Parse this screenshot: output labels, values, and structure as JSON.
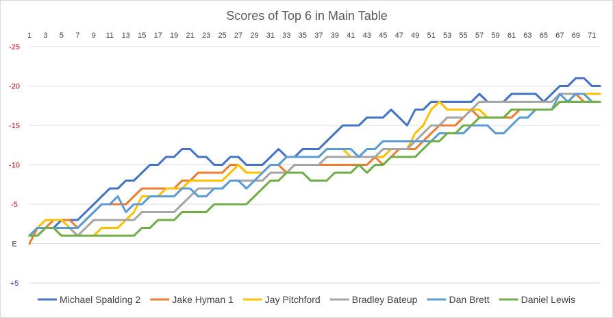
{
  "chart_data": {
    "type": "line",
    "title": "Scores of Top 6 in Main Table",
    "xlabel": "",
    "ylabel": "",
    "x": [
      1,
      2,
      3,
      4,
      5,
      6,
      7,
      8,
      9,
      10,
      11,
      12,
      13,
      14,
      15,
      16,
      17,
      18,
      19,
      20,
      21,
      22,
      23,
      24,
      25,
      26,
      27,
      28,
      29,
      30,
      31,
      32,
      33,
      34,
      35,
      36,
      37,
      38,
      39,
      40,
      41,
      42,
      43,
      44,
      45,
      46,
      47,
      48,
      49,
      50,
      51,
      52,
      53,
      54,
      55,
      56,
      57,
      58,
      59,
      60,
      61,
      62,
      63,
      64,
      65,
      66,
      67,
      68,
      69,
      70,
      71,
      72
    ],
    "x_tick_labels": [
      "1",
      "3",
      "5",
      "7",
      "9",
      "11",
      "13",
      "15",
      "17",
      "19",
      "21",
      "23",
      "25",
      "27",
      "29",
      "31",
      "33",
      "35",
      "37",
      "39",
      "41",
      "43",
      "45",
      "47",
      "49",
      "51",
      "53",
      "55",
      "57",
      "59",
      "61",
      "63",
      "65",
      "67",
      "69",
      "71"
    ],
    "ylim": [
      5,
      -25
    ],
    "y_inverted": true,
    "y_ticks": [
      {
        "value": -25,
        "label": "-25",
        "color": "#c00000"
      },
      {
        "value": -20,
        "label": "-20",
        "color": "#c00000"
      },
      {
        "value": -15,
        "label": "-15",
        "color": "#c00000"
      },
      {
        "value": -10,
        "label": "-10",
        "color": "#c00000"
      },
      {
        "value": -5,
        "label": "-5",
        "color": "#c00000"
      },
      {
        "value": 0,
        "label": "E",
        "color": "#404040"
      },
      {
        "value": 5,
        "label": "+5",
        "color": "#1f3fbf"
      }
    ],
    "x_axis_position": "top",
    "grid": true,
    "legend_position": "bottom",
    "series": [
      {
        "name": "Michael Spalding 2",
        "color": "#4472c4",
        "values": [
          -1,
          -2,
          -2,
          -2,
          -3,
          -3,
          -3,
          -4,
          -5,
          -6,
          -7,
          -7,
          -8,
          -8,
          -9,
          -10,
          -10,
          -11,
          -11,
          -12,
          -12,
          -11,
          -11,
          -10,
          -10,
          -11,
          -11,
          -10,
          -10,
          -10,
          -11,
          -12,
          -11,
          -11,
          -12,
          -12,
          -12,
          -13,
          -14,
          -15,
          -15,
          -15,
          -16,
          -16,
          -16,
          -17,
          -16,
          -15,
          -17,
          -17,
          -18,
          -18,
          -18,
          -18,
          -18,
          -18,
          -19,
          -18,
          -18,
          -18,
          -19,
          -19,
          -19,
          -19,
          -18,
          -19,
          -20,
          -20,
          -21,
          -21,
          -20,
          -20
        ]
      },
      {
        "name": "Jake Hyman 1",
        "color": "#ed7d31",
        "values": [
          0,
          -2,
          -2,
          -3,
          -3,
          -3,
          -2,
          -3,
          -4,
          -5,
          -5,
          -5,
          -5,
          -6,
          -7,
          -7,
          -7,
          -7,
          -7,
          -8,
          -8,
          -9,
          -9,
          -9,
          -9,
          -10,
          -10,
          -9,
          -9,
          -9,
          -10,
          -10,
          -9,
          -10,
          -10,
          -10,
          -10,
          -10,
          -10,
          -10,
          -10,
          -10,
          -10,
          -11,
          -10,
          -11,
          -12,
          -12,
          -12,
          -13,
          -14,
          -15,
          -15,
          -15,
          -16,
          -17,
          -16,
          -16,
          -16,
          -16,
          -16,
          -17,
          -17,
          -17,
          -17,
          -17,
          -18,
          -18,
          -19,
          -18,
          -18,
          -18
        ]
      },
      {
        "name": "Jay Pitchford",
        "color": "#ffc000",
        "values": [
          -1,
          -2,
          -3,
          -3,
          -3,
          -2,
          -1,
          -1,
          -1,
          -2,
          -2,
          -2,
          -3,
          -4,
          -6,
          -6,
          -6,
          -7,
          -7,
          -7,
          -8,
          -8,
          -8,
          -8,
          -8,
          -9,
          -10,
          -9,
          -9,
          -9,
          -10,
          -10,
          -11,
          -11,
          -11,
          -11,
          -11,
          -12,
          -12,
          -12,
          -11,
          -11,
          -11,
          -11,
          -11,
          -12,
          -12,
          -12,
          -14,
          -15,
          -17,
          -18,
          -17,
          -17,
          -17,
          -17,
          -17,
          -16,
          -16,
          -16,
          -17,
          -17,
          -17,
          -17,
          -17,
          -17,
          -18,
          -18,
          -19,
          -19,
          -19,
          -19
        ]
      },
      {
        "name": "Bradley Bateup",
        "color": "#a5a5a5",
        "values": [
          -1,
          -1,
          -2,
          -2,
          -2,
          -2,
          -1,
          -2,
          -3,
          -3,
          -3,
          -3,
          -3,
          -3,
          -4,
          -4,
          -4,
          -4,
          -4,
          -5,
          -6,
          -7,
          -7,
          -7,
          -7,
          -8,
          -8,
          -8,
          -8,
          -8,
          -9,
          -9,
          -9,
          -10,
          -10,
          -10,
          -10,
          -11,
          -11,
          -11,
          -11,
          -11,
          -11,
          -11,
          -12,
          -12,
          -12,
          -12,
          -13,
          -14,
          -15,
          -15,
          -16,
          -16,
          -16,
          -17,
          -18,
          -18,
          -18,
          -18,
          -18,
          -18,
          -18,
          -18,
          -18,
          -18,
          -19,
          -19,
          -19,
          -19,
          -18,
          -18
        ]
      },
      {
        "name": "Dan Brett",
        "color": "#5b9bd5",
        "values": [
          -1,
          -2,
          -2,
          -2,
          -2,
          -2,
          -2,
          -3,
          -4,
          -5,
          -5,
          -6,
          -4,
          -5,
          -5,
          -6,
          -6,
          -6,
          -6,
          -7,
          -7,
          -6,
          -6,
          -7,
          -7,
          -8,
          -8,
          -7,
          -8,
          -9,
          -10,
          -10,
          -11,
          -11,
          -11,
          -11,
          -11,
          -12,
          -12,
          -12,
          -12,
          -11,
          -12,
          -12,
          -13,
          -13,
          -13,
          -13,
          -13,
          -13,
          -13,
          -14,
          -14,
          -14,
          -14,
          -15,
          -15,
          -15,
          -14,
          -14,
          -15,
          -16,
          -16,
          -17,
          -17,
          -17,
          -19,
          -18,
          -19,
          -19,
          -18,
          -18
        ]
      },
      {
        "name": "Daniel Lewis",
        "color": "#70ad47",
        "values": [
          -1,
          -1,
          -2,
          -2,
          -1,
          -1,
          -1,
          -1,
          -1,
          -1,
          -1,
          -1,
          -1,
          -1,
          -2,
          -2,
          -3,
          -3,
          -3,
          -4,
          -4,
          -4,
          -4,
          -5,
          -5,
          -5,
          -5,
          -5,
          -6,
          -7,
          -8,
          -8,
          -9,
          -9,
          -9,
          -8,
          -8,
          -8,
          -9,
          -9,
          -9,
          -10,
          -9,
          -10,
          -10,
          -11,
          -11,
          -11,
          -11,
          -12,
          -13,
          -13,
          -14,
          -14,
          -15,
          -15,
          -16,
          -16,
          -16,
          -16,
          -17,
          -17,
          -17,
          -17,
          -17,
          -17,
          -18,
          -18,
          -18,
          -18,
          -18,
          -18
        ]
      }
    ]
  }
}
